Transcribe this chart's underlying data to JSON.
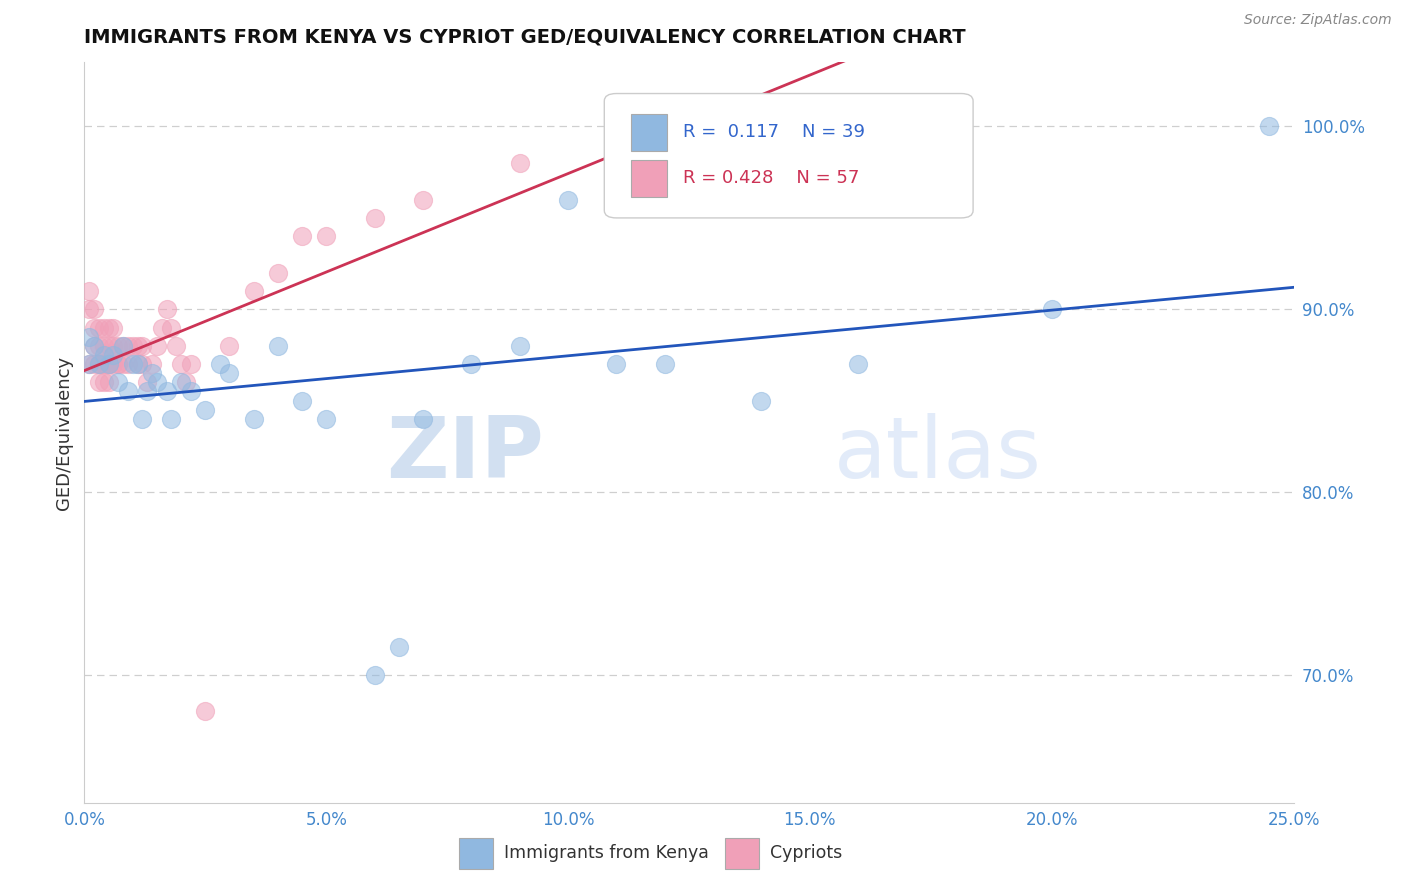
{
  "title": "IMMIGRANTS FROM KENYA VS CYPRIOT GED/EQUIVALENCY CORRELATION CHART",
  "source_text": "Source: ZipAtlas.com",
  "ylabel": "GED/Equivalency",
  "xlim": [
    0.0,
    0.25
  ],
  "ylim": [
    0.63,
    1.035
  ],
  "xticks": [
    0.0,
    0.05,
    0.1,
    0.15,
    0.2,
    0.25
  ],
  "xticklabels": [
    "0.0%",
    "5.0%",
    "10.0%",
    "15.0%",
    "20.0%",
    "25.0%"
  ],
  "yticks": [
    0.7,
    0.8,
    0.9,
    1.0
  ],
  "yticklabels": [
    "70.0%",
    "80.0%",
    "90.0%",
    "100.0%"
  ],
  "blue_color": "#90b8e0",
  "pink_color": "#f0a0b8",
  "blue_line_color": "#2255bb",
  "pink_line_color": "#cc3355",
  "watermark_zip": "ZIP",
  "watermark_atlas": "atlas",
  "r1": "0.117",
  "n1": "39",
  "r2": "0.428",
  "n2": "57",
  "series1_x": [
    0.001,
    0.001,
    0.002,
    0.003,
    0.004,
    0.005,
    0.006,
    0.007,
    0.008,
    0.009,
    0.01,
    0.011,
    0.012,
    0.013,
    0.014,
    0.015,
    0.017,
    0.018,
    0.02,
    0.022,
    0.025,
    0.028,
    0.03,
    0.035,
    0.04,
    0.045,
    0.05,
    0.06,
    0.065,
    0.07,
    0.08,
    0.09,
    0.1,
    0.11,
    0.12,
    0.14,
    0.16,
    0.2,
    0.245
  ],
  "series1_y": [
    0.885,
    0.87,
    0.88,
    0.87,
    0.875,
    0.87,
    0.875,
    0.86,
    0.88,
    0.855,
    0.87,
    0.87,
    0.84,
    0.855,
    0.865,
    0.86,
    0.855,
    0.84,
    0.86,
    0.855,
    0.845,
    0.87,
    0.865,
    0.84,
    0.88,
    0.85,
    0.84,
    0.7,
    0.715,
    0.84,
    0.87,
    0.88,
    0.96,
    0.87,
    0.87,
    0.85,
    0.87,
    0.9,
    1.0
  ],
  "series2_x": [
    0.001,
    0.001,
    0.001,
    0.002,
    0.002,
    0.002,
    0.002,
    0.003,
    0.003,
    0.003,
    0.003,
    0.003,
    0.004,
    0.004,
    0.004,
    0.004,
    0.004,
    0.005,
    0.005,
    0.005,
    0.005,
    0.005,
    0.006,
    0.006,
    0.006,
    0.007,
    0.007,
    0.007,
    0.008,
    0.008,
    0.009,
    0.009,
    0.01,
    0.011,
    0.011,
    0.012,
    0.012,
    0.013,
    0.014,
    0.015,
    0.016,
    0.017,
    0.018,
    0.019,
    0.02,
    0.021,
    0.022,
    0.025,
    0.03,
    0.035,
    0.04,
    0.045,
    0.05,
    0.06,
    0.07,
    0.09,
    0.12
  ],
  "series2_y": [
    0.87,
    0.9,
    0.91,
    0.87,
    0.88,
    0.89,
    0.9,
    0.87,
    0.88,
    0.89,
    0.86,
    0.87,
    0.87,
    0.88,
    0.89,
    0.87,
    0.86,
    0.87,
    0.86,
    0.87,
    0.88,
    0.89,
    0.87,
    0.88,
    0.89,
    0.87,
    0.88,
    0.87,
    0.88,
    0.87,
    0.87,
    0.88,
    0.88,
    0.87,
    0.88,
    0.87,
    0.88,
    0.86,
    0.87,
    0.88,
    0.89,
    0.9,
    0.89,
    0.88,
    0.87,
    0.86,
    0.87,
    0.68,
    0.88,
    0.91,
    0.92,
    0.94,
    0.94,
    0.95,
    0.96,
    0.98,
    1.0
  ]
}
